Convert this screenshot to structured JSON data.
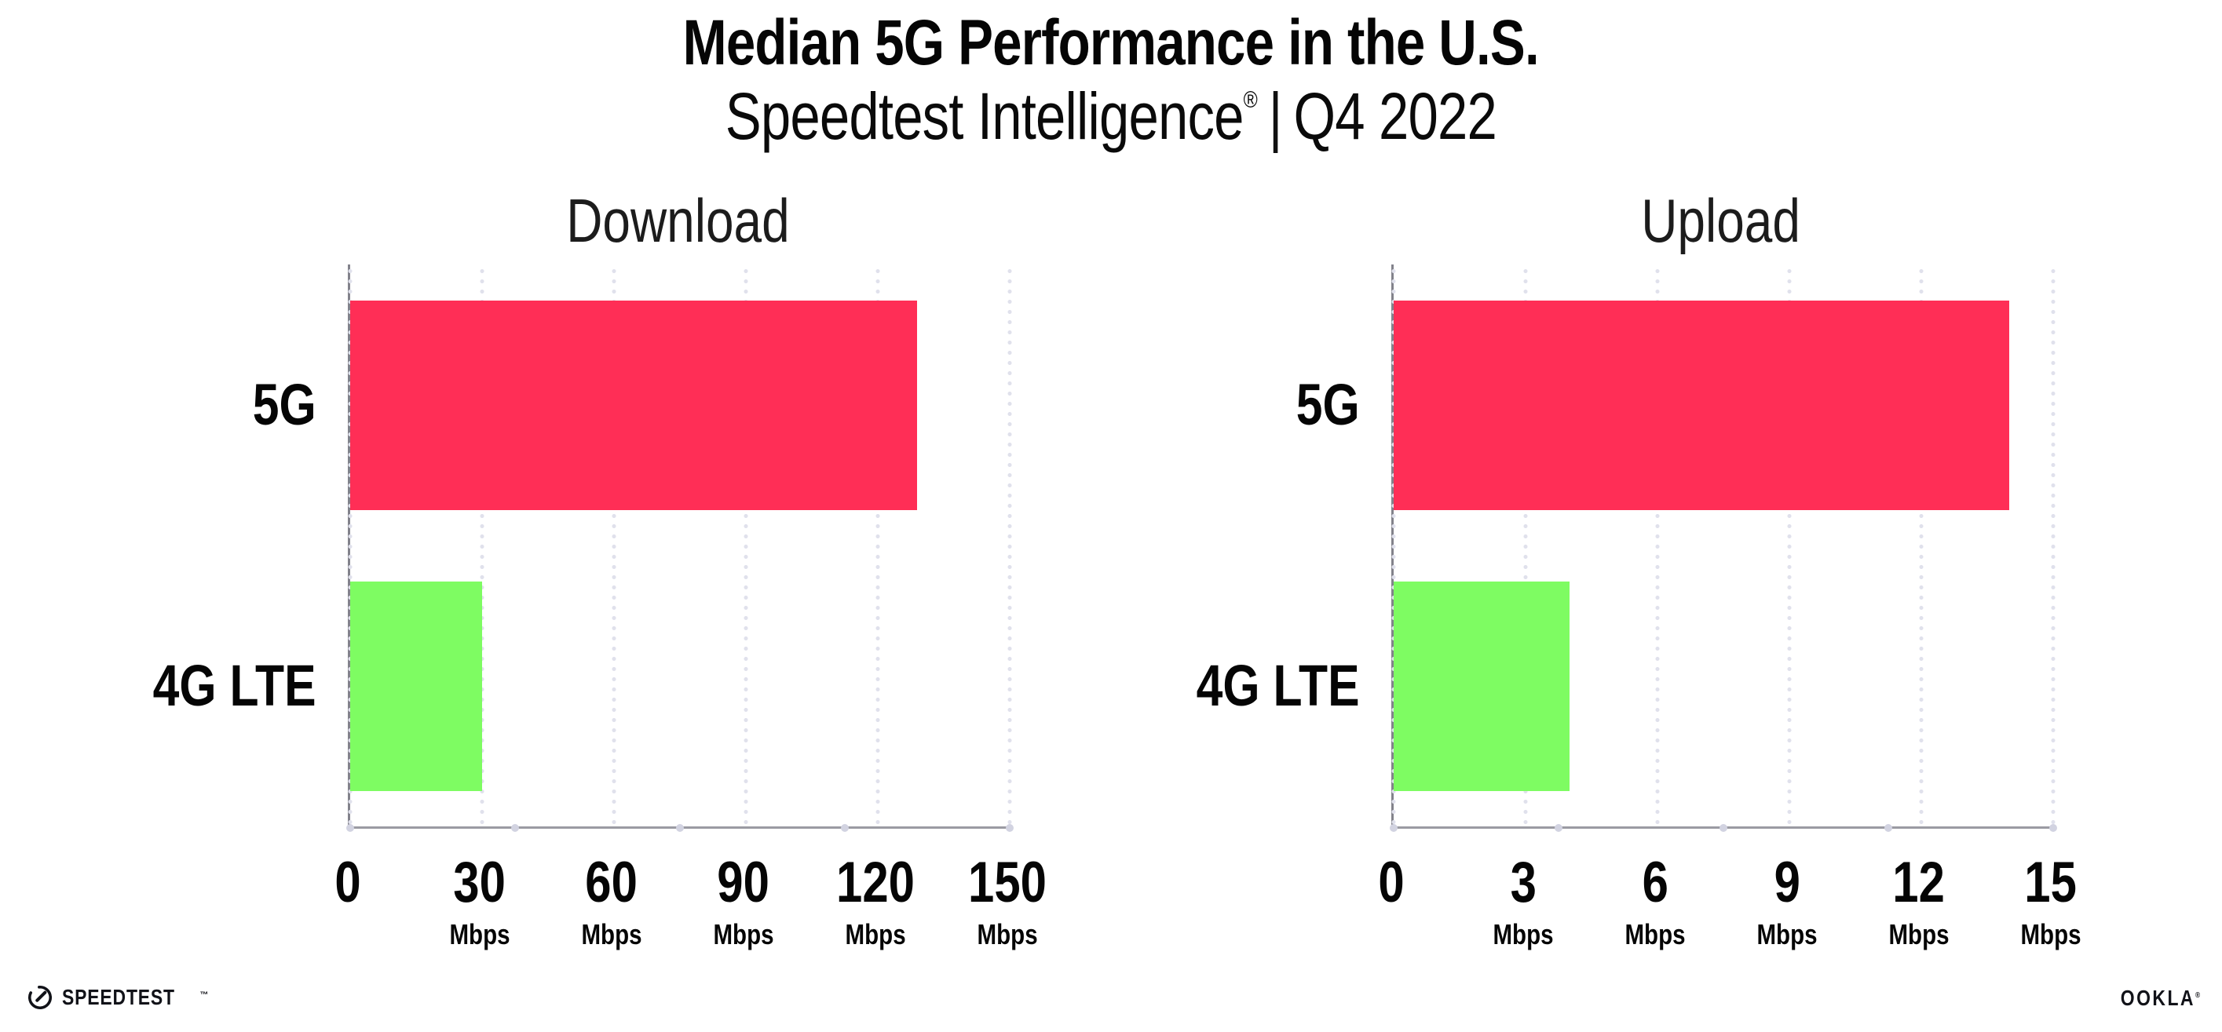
{
  "header": {
    "title": "Median 5G Performance in the U.S.",
    "subtitle_brand": "Speedtest Intelligence",
    "subtitle_reg": "®",
    "subtitle_sep": "|",
    "subtitle_period": "Q4 2022"
  },
  "footer": {
    "speedtest_logo_text": "SPEEDTEST",
    "speedtest_tm": "™",
    "ookla_logo_text": "OOKLA",
    "ookla_reg": "®"
  },
  "colors": {
    "bar_5g": "#ff2e56",
    "bar_4g": "#7efc62",
    "axis_line": "#9a9aa3",
    "grid_dot": "#e0e1ec",
    "axis_quarter_dot": "#d2d3e1",
    "text": "#050505"
  },
  "chart_data": [
    {
      "type": "bar",
      "orientation": "horizontal",
      "title": "Download",
      "categories": [
        "5G",
        "4G LTE"
      ],
      "values": [
        129,
        30
      ],
      "unit": "Mbps",
      "xlim": [
        0,
        150
      ],
      "ticks": [
        0,
        30,
        60,
        90,
        120,
        150
      ],
      "bar_colors": [
        "#ff2e56",
        "#7efc62"
      ],
      "grid": "dotted-vertical",
      "legend": "none"
    },
    {
      "type": "bar",
      "orientation": "horizontal",
      "title": "Upload",
      "categories": [
        "5G",
        "4G LTE"
      ],
      "values": [
        14,
        4
      ],
      "unit": "Mbps",
      "xlim": [
        0,
        15
      ],
      "ticks": [
        0,
        3,
        6,
        9,
        12,
        15
      ],
      "bar_colors": [
        "#ff2e56",
        "#7efc62"
      ],
      "grid": "dotted-vertical",
      "legend": "none"
    }
  ]
}
